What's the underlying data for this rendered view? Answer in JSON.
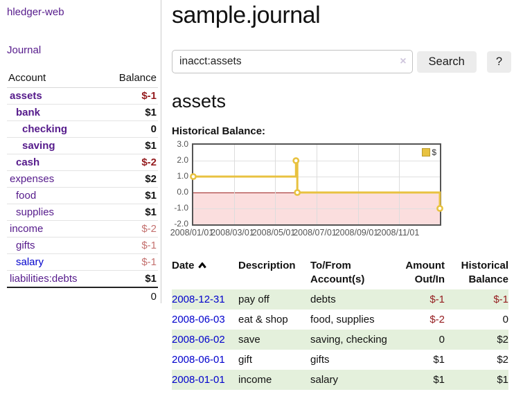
{
  "colors": {
    "purple_link": "#551a8b",
    "blue_link": "#0000cc",
    "red_strong": "#941b1e",
    "red_soft": "#c4716f",
    "stripe_green": "#e4f0dc",
    "gold": "#e8c240",
    "pink": "#fbdede",
    "zero_line": "#9e2120",
    "grid_border": "#545454",
    "button_bg": "#ececec"
  },
  "sidebar": {
    "brand": "hledger-web",
    "journal_link": "Journal",
    "table": {
      "account_header": "Account",
      "balance_header": "Balance",
      "accounts": [
        {
          "name": "assets",
          "depth": 0,
          "bold": true,
          "balance": "$-1",
          "neg": "strong"
        },
        {
          "name": "bank",
          "depth": 1,
          "bold": true,
          "balance": "$1"
        },
        {
          "name": "checking",
          "depth": 2,
          "bold": true,
          "balance": "0"
        },
        {
          "name": "saving",
          "depth": 2,
          "bold": true,
          "balance": "$1"
        },
        {
          "name": "cash",
          "depth": 1,
          "bold": true,
          "balance": "$-2",
          "neg": "strong"
        },
        {
          "name": "expenses",
          "depth": 0,
          "bold": false,
          "balance": "$2"
        },
        {
          "name": "food",
          "depth": 1,
          "bold": false,
          "balance": "$1"
        },
        {
          "name": "supplies",
          "depth": 1,
          "bold": false,
          "balance": "$1"
        },
        {
          "name": "income",
          "depth": 0,
          "bold": false,
          "balance": "$-2",
          "neg": "soft"
        },
        {
          "name": "gifts",
          "depth": 1,
          "bold": false,
          "balance": "$-1",
          "neg": "soft"
        },
        {
          "name": "salary",
          "depth": 1,
          "bold": false,
          "balance": "$-1",
          "neg": "soft",
          "link": "blue"
        },
        {
          "name": "liabilities:debts",
          "depth": 0,
          "bold": false,
          "balance": "$1"
        }
      ],
      "total": "0"
    }
  },
  "main": {
    "title": "sample.journal",
    "search": {
      "value": "inacct:assets",
      "clear_icon": "×",
      "search_button": "Search",
      "help_button": "?"
    },
    "account_heading": "assets",
    "chart_label": "Historical Balance:"
  },
  "chart_data": {
    "type": "line",
    "step": true,
    "title": "Historical Balance",
    "series": [
      {
        "name": "$",
        "color": "#e8c240",
        "points": [
          [
            "2008-01-01",
            1
          ],
          [
            "2008-06-01",
            2
          ],
          [
            "2008-06-03",
            0
          ],
          [
            "2008-12-31",
            -1
          ]
        ]
      }
    ],
    "xlim": [
      "2008-01-01",
      "2008-12-31"
    ],
    "ylim": [
      -2,
      3
    ],
    "y_ticks": [
      3.0,
      2.0,
      1.0,
      0.0,
      -1.0,
      -2.0
    ],
    "y_tick_labels": [
      "3.0",
      "2.0",
      "1.0",
      "0.0",
      "-1.0",
      "-2.0"
    ],
    "x_tick_labels": [
      "2008/01/01",
      "2008/03/01",
      "2008/05/01",
      "2008/07/01",
      "2008/09/01",
      "2008/11/01"
    ],
    "legend": {
      "label": "$",
      "position": "top-right"
    },
    "grid": true,
    "negative_region_shaded": true
  },
  "register": {
    "headers": [
      {
        "label": "Date",
        "sort": "asc"
      },
      {
        "label": "Description"
      },
      {
        "label": "To/From Account(s)"
      },
      {
        "label": "Amount Out/In",
        "align": "right"
      },
      {
        "label": "Historical Balance",
        "align": "right"
      }
    ],
    "rows": [
      {
        "date": "2008-12-31",
        "description": "pay off",
        "accounts": "debts",
        "amount": "$-1",
        "amount_neg": true,
        "balance": "$-1",
        "balance_neg": true
      },
      {
        "date": "2008-06-03",
        "description": "eat & shop",
        "accounts": "food, supplies",
        "amount": "$-2",
        "amount_neg": true,
        "balance": "0",
        "balance_neg": false
      },
      {
        "date": "2008-06-02",
        "description": "save",
        "accounts": "saving, checking",
        "amount": "0",
        "amount_neg": false,
        "balance": "$2",
        "balance_neg": false
      },
      {
        "date": "2008-06-01",
        "description": "gift",
        "accounts": "gifts",
        "amount": "$1",
        "amount_neg": false,
        "balance": "$2",
        "balance_neg": false
      },
      {
        "date": "2008-01-01",
        "description": "income",
        "accounts": "salary",
        "amount": "$1",
        "amount_neg": false,
        "balance": "$1",
        "balance_neg": false
      }
    ]
  }
}
